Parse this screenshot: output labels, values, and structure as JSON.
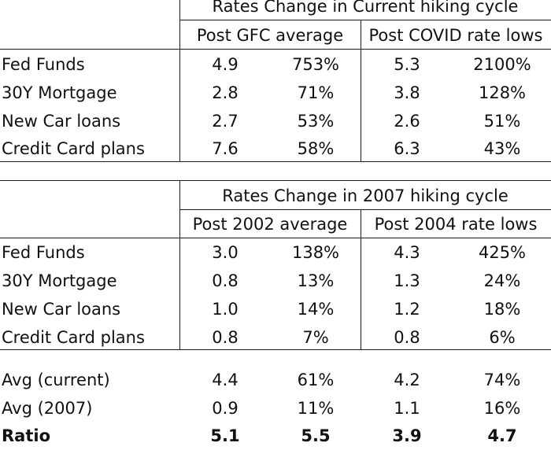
{
  "table_current": {
    "title": "Rates Change in Current hiking cycle",
    "group1": "Post GFC average",
    "group2": "Post COVID rate lows",
    "rows": [
      {
        "label": "Fed Funds",
        "v1": "4.9",
        "p1": "753%",
        "v2": "5.3",
        "p2": "2100%"
      },
      {
        "label": "30Y Mortgage",
        "v1": "2.8",
        "p1": "71%",
        "v2": "3.8",
        "p2": "128%"
      },
      {
        "label": "New Car loans",
        "v1": "2.7",
        "p1": "53%",
        "v2": "2.6",
        "p2": "51%"
      },
      {
        "label": "Credit Card plans",
        "v1": "7.6",
        "p1": "58%",
        "v2": "6.3",
        "p2": "43%"
      }
    ]
  },
  "table_2007": {
    "title": "Rates Change in 2007 hiking cycle",
    "group1": "Post 2002 average",
    "group2": "Post 2004 rate lows",
    "rows": [
      {
        "label": "Fed Funds",
        "v1": "3.0",
        "p1": "138%",
        "v2": "4.3",
        "p2": "425%"
      },
      {
        "label": "30Y Mortgage",
        "v1": "0.8",
        "p1": "13%",
        "v2": "1.3",
        "p2": "24%"
      },
      {
        "label": "New Car loans",
        "v1": "1.0",
        "p1": "14%",
        "v2": "1.2",
        "p2": "18%"
      },
      {
        "label": "Credit Card plans",
        "v1": "0.8",
        "p1": "7%",
        "v2": "0.8",
        "p2": "6%"
      }
    ]
  },
  "summary": {
    "rows": [
      {
        "label": "Avg (current)",
        "v1": "4.4",
        "p1": "61%",
        "v2": "4.2",
        "p2": "74%"
      },
      {
        "label": "Avg (2007)",
        "v1": "0.9",
        "p1": "11%",
        "v2": "1.1",
        "p2": "16%"
      },
      {
        "label": "Ratio",
        "v1": "5.1",
        "p1": "5.5",
        "v2": "3.9",
        "p2": "4.7"
      }
    ]
  }
}
